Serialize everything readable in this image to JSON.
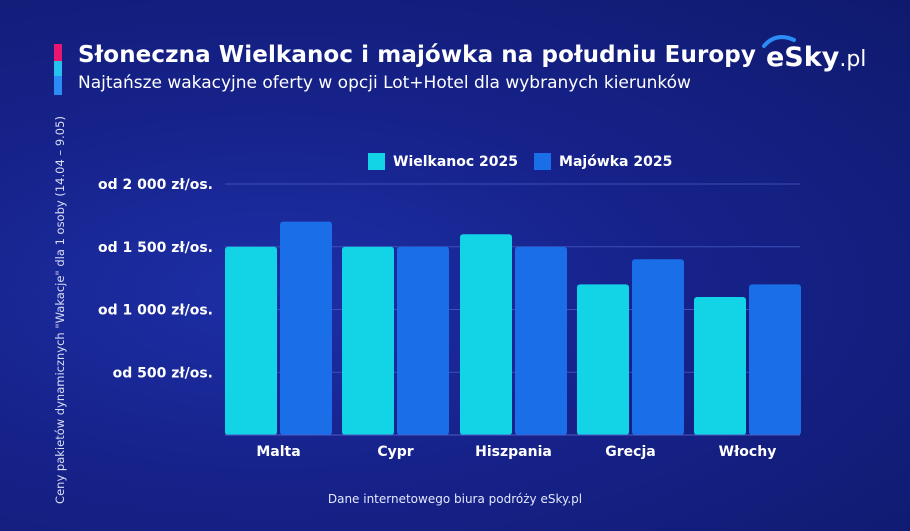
{
  "header": {
    "title": "Słoneczna Wielkanoc i majówka na południu Europy",
    "subtitle": "Najtańsze wakacyjne oferty w opcji Lot+Hotel dla wybranych kierunków"
  },
  "logo": {
    "main": "eSky",
    "suffix": ".pl"
  },
  "footer": {
    "source": "Dane internetowego biura podróży eSky.pl"
  },
  "colors": {
    "wielkanoc": "#13d4e6",
    "majowka": "#1a6ee8",
    "gridline": "#3d4fb8"
  },
  "chart_data": {
    "type": "bar",
    "title": "Słoneczna Wielkanoc i majówka na południu Europy",
    "ylabel": "Ceny pakietów dynamicznych \"Wakacje\" dla 1 osoby (14.04 – 9.05)",
    "xlabel": "",
    "categories": [
      "Malta",
      "Cypr",
      "Hiszpania",
      "Grecja",
      "Włochy"
    ],
    "series": [
      {
        "name": "Wielkanoc 2025",
        "values": [
          1500,
          1500,
          1600,
          1200,
          1100
        ]
      },
      {
        "name": "Majówka 2025",
        "values": [
          1700,
          1500,
          1500,
          1400,
          1200
        ]
      }
    ],
    "ylim": [
      0,
      2000
    ],
    "yticks": [
      {
        "value": 500,
        "label": "od 500 zł/os."
      },
      {
        "value": 1000,
        "label": "od 1 000 zł/os."
      },
      {
        "value": 1500,
        "label": "od 1 500 zł/os."
      },
      {
        "value": 2000,
        "label": "od 2 000 zł/os."
      }
    ],
    "legend": "top-center",
    "grid": true
  }
}
